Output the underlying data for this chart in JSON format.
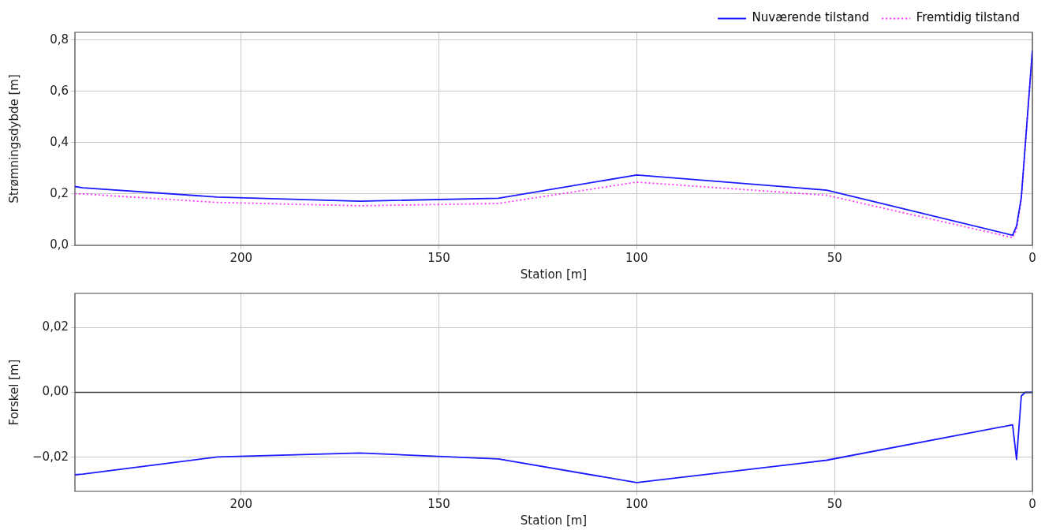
{
  "chart_data": [
    {
      "type": "line",
      "xlabel": "Station [m]",
      "ylabel": "Strømningsdybde [m]",
      "xlim": [
        242,
        0
      ],
      "xticks": [
        200,
        150,
        100,
        50,
        0
      ],
      "ylim": [
        0,
        0.83
      ],
      "yticks": [
        {
          "value": 0,
          "label": "0,0"
        },
        {
          "value": 0.2,
          "label": "0,2"
        },
        {
          "value": 0.4,
          "label": "0,4"
        },
        {
          "value": 0.6,
          "label": "0,6"
        },
        {
          "value": 0.8,
          "label": "0,8"
        }
      ],
      "grid": true,
      "legend": "top right",
      "marker": "none",
      "series": [
        {
          "name": "Nuværende tilstand",
          "color": "#1a1aff",
          "line_style": "solid",
          "x": [
            242,
            240,
            206,
            170,
            135,
            100,
            52,
            5,
            4,
            2.8,
            0
          ],
          "values": [
            0.229,
            0.224,
            0.188,
            0.172,
            0.183,
            0.274,
            0.215,
            0.039,
            0.075,
            0.186,
            0.759
          ]
        },
        {
          "name": "Fremtidig tilstand",
          "color": "#ff33ff",
          "line_style": "dotted",
          "x": [
            242,
            240,
            206,
            170,
            135,
            100,
            52,
            5,
            4,
            2.8,
            0
          ],
          "values": [
            0.201,
            0.2,
            0.167,
            0.154,
            0.163,
            0.246,
            0.195,
            0.03,
            0.06,
            0.18,
            0.759
          ]
        }
      ]
    },
    {
      "type": "line",
      "xlabel": "Station [m]",
      "ylabel": "Forskel [m]",
      "xlim": [
        242,
        0
      ],
      "xticks": [
        200,
        150,
        100,
        50,
        0
      ],
      "ylim": [
        -0.0305,
        0.0305
      ],
      "yticks": [
        {
          "value": -0.02,
          "label": "−0,02"
        },
        {
          "value": 0,
          "label": "0,00"
        },
        {
          "value": 0.02,
          "label": "0,02"
        }
      ],
      "grid": true,
      "marker": "none",
      "ref_lines": [
        {
          "axis": "y",
          "value": 0,
          "color": "#404040"
        }
      ],
      "series": [
        {
          "color": "#1a1aff",
          "line_style": "solid",
          "x": [
            242,
            240,
            206,
            170,
            135,
            100,
            52,
            5,
            4,
            2.8,
            1.8,
            0
          ],
          "values": [
            -0.0254,
            -0.0252,
            -0.0199,
            -0.0187,
            -0.0205,
            -0.0278,
            -0.0209,
            -0.01,
            -0.0207,
            -0.0011,
            0,
            0
          ]
        }
      ]
    }
  ]
}
